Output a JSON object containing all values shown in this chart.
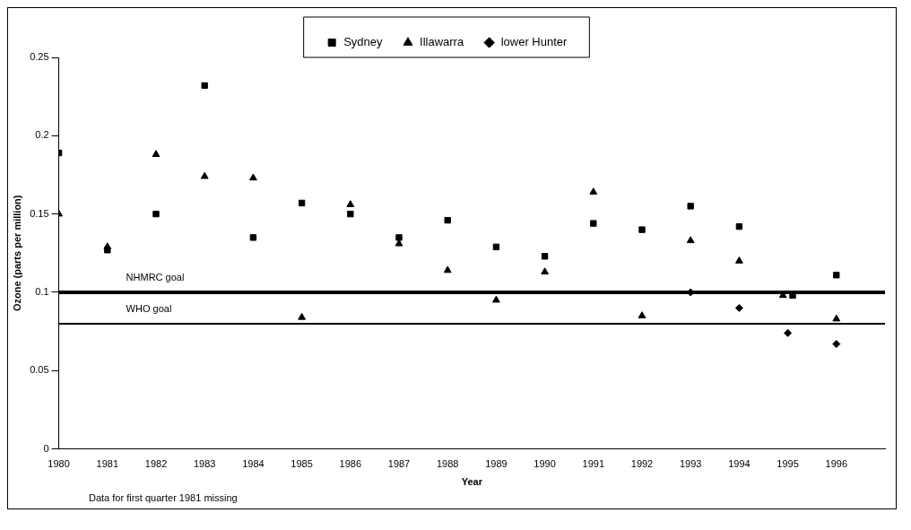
{
  "chart_data": {
    "type": "scatter",
    "xlabel": "Year",
    "ylabel": "Ozone (parts per million)",
    "xlim": [
      1980,
      1997
    ],
    "xticks": [
      1980,
      1981,
      1982,
      1983,
      1984,
      1985,
      1986,
      1987,
      1988,
      1989,
      1990,
      1991,
      1992,
      1993,
      1994,
      1995,
      1996
    ],
    "ylim": [
      0,
      0.25
    ],
    "yticks": [
      0,
      0.05,
      0.1,
      0.15,
      0.2,
      0.25
    ],
    "grid": false,
    "legend": "top",
    "series": [
      {
        "name": "Sydney",
        "color": "#000000",
        "marker": "square",
        "x": [
          1980,
          1981,
          1982,
          1983,
          1984,
          1985,
          1986,
          1987,
          1988,
          1989,
          1990,
          1991,
          1992,
          1993,
          1994,
          1995.1,
          1996
        ],
        "values": [
          0.189,
          0.127,
          0.15,
          0.232,
          0.135,
          0.157,
          0.15,
          0.135,
          0.146,
          0.129,
          0.123,
          0.144,
          0.14,
          0.155,
          0.142,
          0.098,
          0.111
        ]
      },
      {
        "name": "Illawarra",
        "color": "#000000",
        "marker": "triangle",
        "x": [
          1980,
          1981,
          1982,
          1983,
          1984,
          1985,
          1986,
          1987,
          1988,
          1989,
          1990,
          1991,
          1992,
          1993,
          1994,
          1994.9,
          1996
        ],
        "values": [
          0.15,
          0.129,
          0.188,
          0.174,
          0.173,
          0.084,
          0.156,
          0.131,
          0.114,
          0.095,
          0.113,
          0.164,
          0.085,
          0.133,
          0.12,
          0.098,
          0.083
        ]
      },
      {
        "name": "lower Hunter",
        "color": "#000000",
        "marker": "diamond",
        "x": [
          1993,
          1994,
          1995,
          1996
        ],
        "values": [
          0.1,
          0.09,
          0.074,
          0.067
        ]
      }
    ],
    "ref_lines": [
      {
        "axis": "y",
        "value": 0.1,
        "label": "NHMRC goal",
        "color": "#000000"
      },
      {
        "axis": "y",
        "value": 0.08,
        "label": "WHO goal",
        "color": "#000000"
      }
    ],
    "annotations": [
      "Data for first quarter 1981 missing"
    ]
  }
}
